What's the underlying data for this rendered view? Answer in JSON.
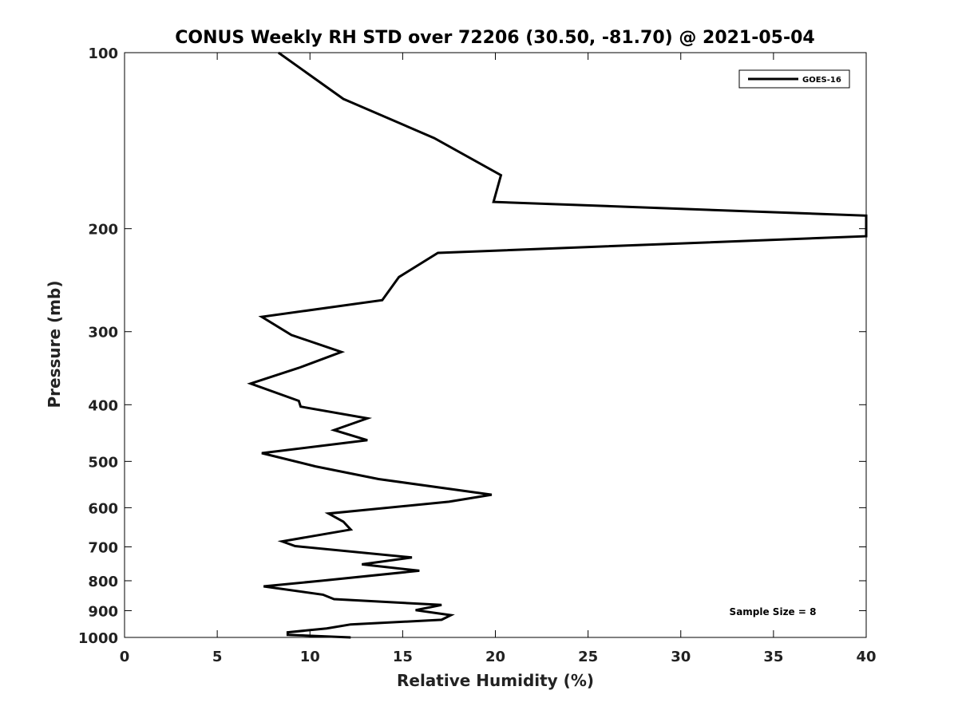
{
  "chart_data": {
    "type": "line",
    "title": "CONUS Weekly RH STD over 72206 (30.50, -81.70) @ 2021-05-04",
    "xlabel": "Relative Humidity (%)",
    "ylabel": "Pressure (mb)",
    "xlim": [
      0,
      40
    ],
    "ylim": [
      100,
      1000
    ],
    "yscale": "log",
    "yreversed": true,
    "xticks": [
      0,
      5,
      10,
      15,
      20,
      25,
      30,
      35,
      40
    ],
    "xtick_labels": [
      "0",
      "5",
      "10",
      "15",
      "20",
      "25",
      "30",
      "35",
      "40"
    ],
    "yticks": [
      100,
      200,
      300,
      400,
      500,
      600,
      700,
      800,
      900,
      1000
    ],
    "ytick_labels": [
      "100",
      "200",
      "300",
      "400",
      "500",
      "600",
      "700",
      "800",
      "900",
      "1000"
    ],
    "grid": false,
    "legend_position": "top-right",
    "series": [
      {
        "name": "GOES-16",
        "color": "#000000",
        "x": [
          8.3,
          11.8,
          16.7,
          20.3,
          19.9,
          40.0,
          40.0,
          16.9,
          14.8,
          13.9,
          7.4,
          9.0,
          11.7,
          9.4,
          6.8,
          9.4,
          9.5,
          13.1,
          11.3,
          13.1,
          7.4,
          10.3,
          13.7,
          19.8,
          17.5,
          11.0,
          11.8,
          12.2,
          8.5,
          9.2,
          15.5,
          12.8,
          15.9,
          10.6,
          7.5,
          10.7,
          11.3,
          17.1,
          15.7,
          17.6,
          17.1,
          12.2,
          10.9,
          8.8,
          8.8,
          12.2
        ],
        "y": [
          100,
          120,
          140,
          162,
          180,
          190,
          206,
          220,
          242,
          265,
          283,
          304,
          325,
          346,
          368,
          394,
          403,
          422,
          442,
          460,
          484,
          510,
          536,
          570,
          586,
          614,
          634,
          654,
          685,
          698,
          730,
          750,
          769,
          800,
          818,
          845,
          860,
          880,
          898,
          916,
          933,
          950,
          965,
          980,
          990,
          1000
        ]
      }
    ],
    "annotations": [
      "Sample Size = 8"
    ]
  }
}
